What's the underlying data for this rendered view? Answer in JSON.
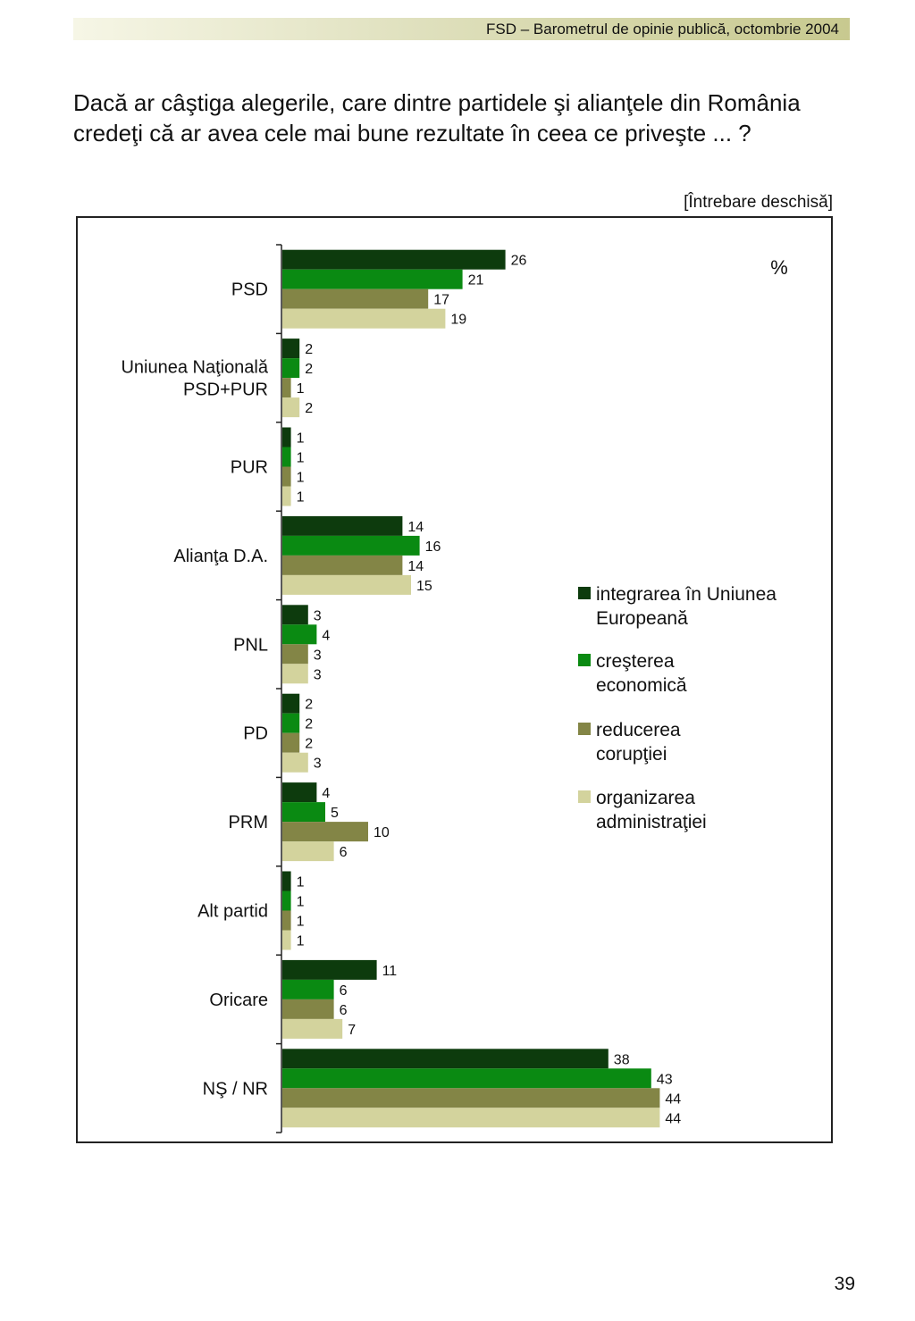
{
  "header": {
    "running_title": "FSD  –  Barometrul de opinie publică, octombrie 2004"
  },
  "question": {
    "text": "Dacă ar câştiga alegerile, care dintre partidele şi alianţele din România credeţi că ar avea cele mai bune rezultate în ceea ce priveşte ... ?",
    "note": "[Întrebare deschisă]"
  },
  "page_number": "39",
  "chart_data": {
    "type": "bar",
    "orientation": "horizontal",
    "unit_label": "%",
    "categories": [
      "PSD",
      "Uniunea Naţională PSD+PUR",
      "PUR",
      "Alianţa D.A.",
      "PNL",
      "PD",
      "PRM",
      "Alt partid",
      "Oricare",
      "NŞ / NR"
    ],
    "series": [
      {
        "name": "integrarea în Uniunea Europeană",
        "color": "#0d3b0d",
        "values": [
          26,
          2,
          1,
          14,
          3,
          2,
          4,
          1,
          11,
          38
        ]
      },
      {
        "name": "creşterea economică",
        "color": "#0a8a12",
        "values": [
          21,
          2,
          1,
          16,
          4,
          2,
          5,
          1,
          6,
          43
        ]
      },
      {
        "name": "reducerea corupţiei",
        "color": "#838546",
        "values": [
          17,
          1,
          1,
          14,
          3,
          2,
          10,
          1,
          6,
          44
        ]
      },
      {
        "name": "organizarea administraţiei",
        "color": "#d3d39d",
        "values": [
          19,
          2,
          1,
          15,
          3,
          3,
          6,
          1,
          7,
          44
        ]
      }
    ],
    "xlim": [
      0,
      50
    ],
    "grid": false,
    "legend_position": "right"
  }
}
